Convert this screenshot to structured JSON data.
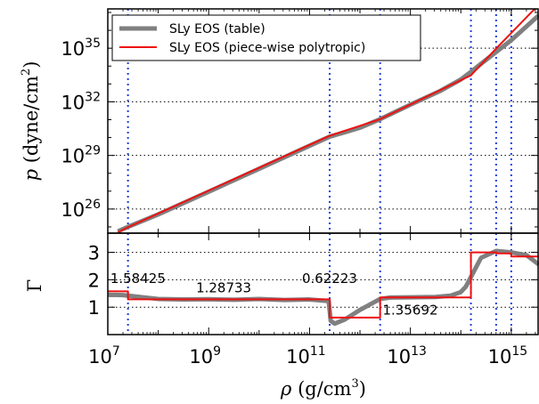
{
  "chart_data": [
    {
      "type": "line",
      "panel": "top",
      "ylabel": "p (dyne/cm²)",
      "xscale": "log",
      "yscale": "log",
      "xlim": [
        7.0,
        15.55
      ],
      "ylim": [
        24.65,
        37.2
      ],
      "xlim_label": "log10 ρ",
      "ylim_label": "log10 p",
      "grid": "horizontal dotted",
      "yticks": [
        {
          "exp": 26,
          "label": "10",
          "sup": "26"
        },
        {
          "exp": 29,
          "label": "10",
          "sup": "29"
        },
        {
          "exp": 32,
          "label": "10",
          "sup": "32"
        },
        {
          "exp": 35,
          "label": "10",
          "sup": "35"
        }
      ],
      "legend": {
        "placement": "top-left",
        "entries": [
          {
            "label": "SLy EOS (table)",
            "color": "#808080"
          },
          {
            "label": "SLy EOS (piece-wise polytropic)",
            "color": "#ee1111"
          }
        ]
      },
      "series": [
        {
          "name": "SLy EOS (table)",
          "color": "#808080",
          "x": [
            7.2,
            7.4,
            8,
            9,
            10,
            11,
            11.4,
            11.7,
            12.0,
            12.4,
            13.0,
            13.6,
            14.0,
            14.2,
            14.5,
            15.0,
            15.55
          ],
          "y": [
            24.75,
            25.0,
            25.7,
            26.97,
            28.25,
            29.54,
            30.05,
            30.3,
            30.55,
            31.03,
            31.84,
            32.62,
            33.25,
            33.68,
            34.35,
            35.45,
            36.85
          ]
        },
        {
          "name": "SLy EOS (piece-wise polytropic)",
          "color": "#ee1111",
          "x": [
            7.2,
            7.4,
            11.4,
            12.4,
            14.2,
            14.7,
            15.0,
            15.55
          ],
          "y": [
            24.7,
            24.98,
            30.1,
            31.03,
            33.48,
            34.98,
            35.85,
            37.45
          ]
        }
      ],
      "vlines": [
        7.4,
        11.4,
        12.4,
        14.2,
        14.7,
        15.0
      ]
    },
    {
      "type": "line",
      "panel": "bottom",
      "ylabel": "Γ",
      "xlabel": "ρ (g/cm³)",
      "xscale": "log",
      "xlim": [
        7.0,
        15.55
      ],
      "ylim": [
        0,
        3.7
      ],
      "grid": "horizontal dotted",
      "yticks": [
        1,
        2,
        3
      ],
      "xticks": [
        {
          "exp": 7,
          "label": "10",
          "sup": "7"
        },
        {
          "exp": 9,
          "label": "10",
          "sup": "9"
        },
        {
          "exp": 11,
          "label": "10",
          "sup": "11"
        },
        {
          "exp": 13,
          "label": "10",
          "sup": "13"
        },
        {
          "exp": 15,
          "label": "10",
          "sup": "15"
        }
      ],
      "annotations": [
        {
          "text": "1.58425",
          "x": 7.05,
          "y": 2.05
        },
        {
          "text": "1.28733",
          "x": 8.75,
          "y": 1.7
        },
        {
          "text": "0.62223",
          "x": 10.85,
          "y": 2.05
        },
        {
          "text": "1.35692",
          "x": 12.45,
          "y": 0.9
        }
      ],
      "series": [
        {
          "name": "SLy EOS (table)",
          "color": "#808080",
          "x": [
            7.0,
            7.3,
            7.4,
            7.6,
            8.0,
            8.5,
            9.0,
            9.5,
            10.0,
            10.5,
            11.0,
            11.38,
            11.42,
            11.5,
            11.7,
            12.0,
            12.4,
            12.6,
            13.0,
            13.5,
            13.8,
            14.0,
            14.1,
            14.2,
            14.4,
            14.7,
            15.0,
            15.3,
            15.55
          ],
          "y": [
            1.45,
            1.44,
            1.42,
            1.38,
            1.3,
            1.28,
            1.29,
            1.27,
            1.3,
            1.26,
            1.28,
            1.22,
            0.5,
            0.4,
            0.55,
            0.9,
            1.3,
            1.35,
            1.36,
            1.37,
            1.42,
            1.55,
            1.75,
            2.1,
            2.8,
            3.05,
            3.0,
            2.9,
            2.55
          ]
        },
        {
          "name": "SLy EOS (piece-wise polytropic)",
          "color": "#ee1111",
          "x": [
            7.0,
            7.4,
            7.4,
            11.4,
            11.4,
            12.4,
            12.4,
            14.2,
            14.2,
            14.7,
            14.7,
            15.0,
            15.0,
            15.55
          ],
          "y": [
            1.58,
            1.58,
            1.287,
            1.287,
            0.622,
            0.622,
            1.357,
            1.357,
            3.0,
            3.0,
            2.96,
            2.96,
            2.85,
            2.85
          ]
        }
      ],
      "vlines": [
        7.4,
        11.4,
        12.4,
        14.2,
        14.7,
        15.0
      ]
    }
  ]
}
